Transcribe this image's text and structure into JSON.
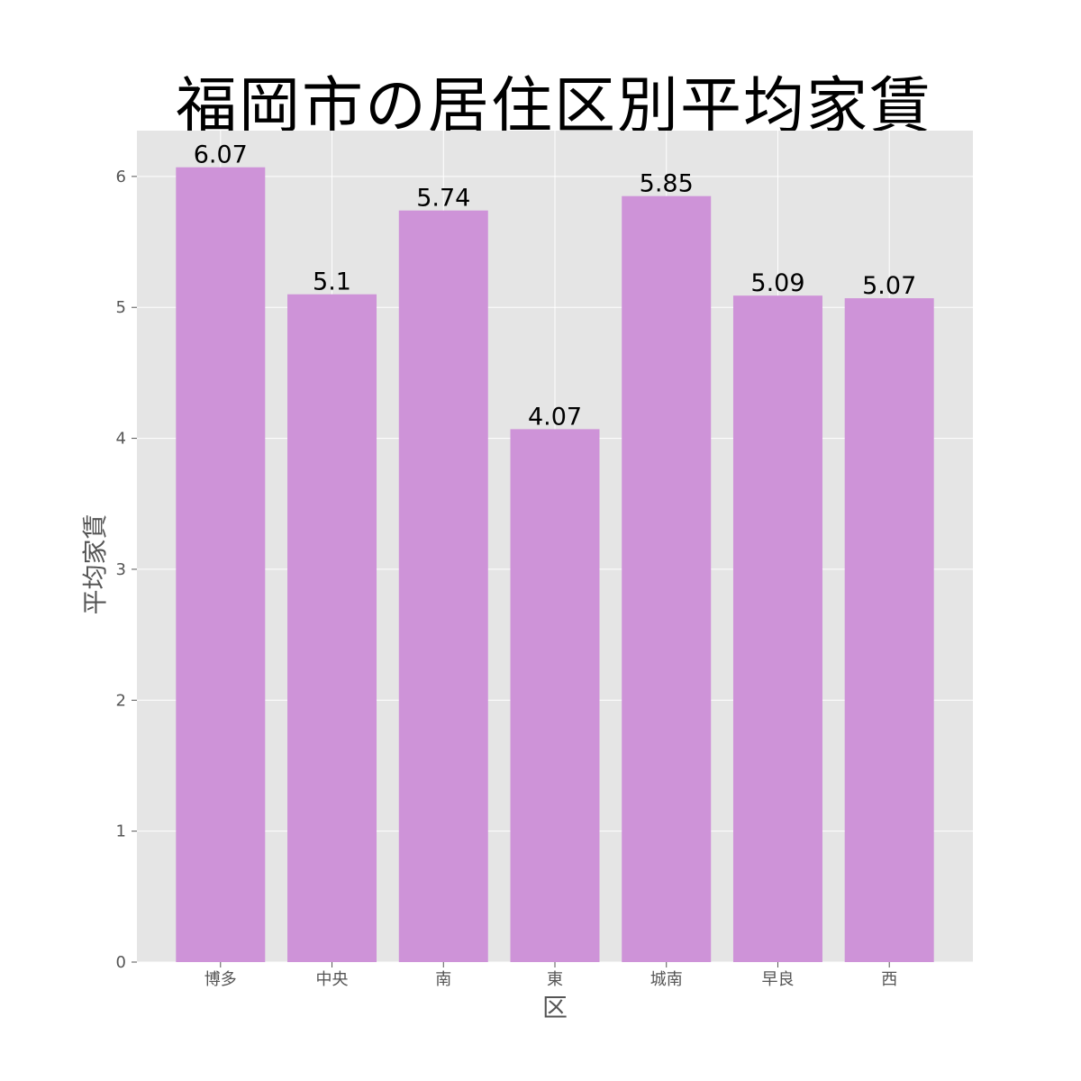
{
  "chart_data": {
    "type": "bar",
    "title": "福岡市の居住区別平均家賃",
    "xlabel": "区",
    "ylabel": "平均家賃",
    "categories": [
      "博多",
      "中央",
      "南",
      "東",
      "城南",
      "早良",
      "西"
    ],
    "values": [
      6.07,
      5.1,
      5.74,
      4.07,
      5.85,
      5.09,
      5.07
    ],
    "value_labels": [
      "6.07",
      "5.1",
      "5.74",
      "4.07",
      "5.85",
      "5.09",
      "5.07"
    ],
    "yticks": [
      0,
      1,
      2,
      3,
      4,
      5,
      6
    ],
    "ylim": [
      0,
      6.35
    ],
    "grid": true,
    "colors": {
      "bar": "#ce93d8",
      "plot_background": "#e5e5e5",
      "grid": "#ffffff"
    }
  }
}
